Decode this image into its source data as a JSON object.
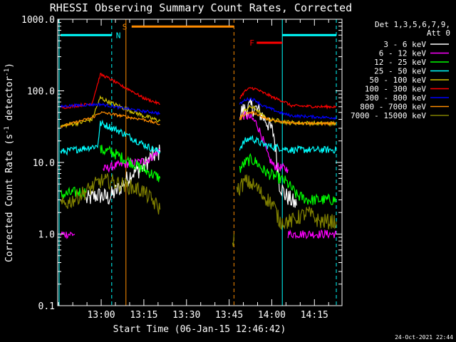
{
  "chart_data": {
    "type": "line",
    "title": "RHESSI Observing Summary Count Rates, Corrected",
    "xlabel": "Start Time (06-Jan-15 12:46:42)",
    "ylabel_prefix": "Corrected Count Rate (s",
    "ylabel_sup1": "-1",
    "ylabel_mid": " detector",
    "ylabel_sup2": "-1",
    "ylabel_suffix": ")",
    "y_scale": "log",
    "ylim": [
      0.1,
      1000
    ],
    "y_ticks": [
      {
        "value": 1000,
        "label": "1000.0"
      },
      {
        "value": 100,
        "label": "100.0"
      },
      {
        "value": 10,
        "label": "10.0"
      },
      {
        "value": 1,
        "label": "1.0"
      },
      {
        "value": 0.1,
        "label": "0.1"
      }
    ],
    "xlim_min": [
      -2,
      98
    ],
    "x_ticks": [
      {
        "value": 13.3,
        "label": "13:00"
      },
      {
        "value": 28.3,
        "label": "13:15"
      },
      {
        "value": 43.3,
        "label": "13:30"
      },
      {
        "value": 58.3,
        "label": "13:45"
      },
      {
        "value": 73.3,
        "label": "14:00"
      },
      {
        "value": 88.3,
        "label": "14:15"
      }
    ],
    "legend": {
      "header1": "Det 1,3,5,6,7,9,",
      "header2": "Att 0",
      "placement": "right",
      "entries": [
        {
          "label": "3 - 6 keV",
          "color": "#ffffff"
        },
        {
          "label": "6 - 12 keV",
          "color": "#ff00ff"
        },
        {
          "label": "12 - 25 keV",
          "color": "#00ff00"
        },
        {
          "label": "25 - 50 keV",
          "color": "#00ffff"
        },
        {
          "label": "50 - 100 keV",
          "color": "#d4c400"
        },
        {
          "label": "100 - 300 keV",
          "color": "#ff0000"
        },
        {
          "label": "300 - 800 keV",
          "color": "#0000ff"
        },
        {
          "label": "800 - 7000 keV",
          "color": "#ff8c00"
        },
        {
          "label": "7000 - 15000 keV",
          "color": "#808000"
        }
      ]
    },
    "flags": [
      {
        "label": "N",
        "color": "#00ffff",
        "x_start": -1,
        "x_end": 17,
        "y": 600
      },
      {
        "label": "S",
        "color": "#ff8c00",
        "x_start": 24,
        "x_end": 60,
        "y": 790
      },
      {
        "label": "F",
        "color": "#ff0000",
        "x_start": 68,
        "x_end": 77,
        "y": 470
      },
      {
        "label": "",
        "color": "#00ffff",
        "x_start": 77,
        "x_end": 96,
        "y": 600
      }
    ],
    "vlines": [
      {
        "x": -1.5,
        "color": "#00ffff",
        "style": "solid"
      },
      {
        "x": 17,
        "color": "#00ffff",
        "style": "dashed"
      },
      {
        "x": 22,
        "color": "#ff8c00",
        "style": "solid"
      },
      {
        "x": 60,
        "color": "#ff8c00",
        "style": "dashed"
      },
      {
        "x": 77,
        "color": "#00ffff",
        "style": "solid"
      },
      {
        "x": 96,
        "color": "#00ffff",
        "style": "dashed"
      }
    ],
    "series": [
      {
        "color": "#ffffff",
        "noise": 0.25,
        "segments": [
          [
            [
              8,
              3
            ],
            [
              12,
              3.5
            ],
            [
              16,
              3.2
            ],
            [
              20,
              4.5
            ],
            [
              24,
              7
            ],
            [
              28,
              8.5
            ],
            [
              31,
              12
            ],
            [
              34,
              14
            ]
          ],
          [
            [
              62,
              50
            ],
            [
              64,
              55
            ],
            [
              66,
              60
            ],
            [
              68,
              55
            ],
            [
              70,
              45
            ],
            [
              72,
              35
            ],
            [
              74,
              25
            ],
            [
              75,
              12
            ],
            [
              76,
              5
            ],
            [
              78,
              3.5
            ],
            [
              80,
              3
            ],
            [
              82,
              2.5
            ]
          ]
        ]
      },
      {
        "color": "#ff00ff",
        "noise": 0.12,
        "segments": [
          [
            [
              -1,
              1
            ],
            [
              4,
              1
            ]
          ],
          [
            [
              14,
              8
            ],
            [
              18,
              9
            ],
            [
              22,
              9.5
            ],
            [
              26,
              10
            ],
            [
              30,
              11
            ],
            [
              34,
              15
            ]
          ],
          [
            [
              62,
              45
            ],
            [
              64,
              45
            ],
            [
              66,
              42
            ],
            [
              68,
              35
            ],
            [
              70,
              22
            ],
            [
              72,
              12
            ],
            [
              74,
              9
            ],
            [
              79,
              8
            ]
          ],
          [
            [
              79,
              1
            ],
            [
              96,
              1
            ]
          ]
        ]
      },
      {
        "color": "#00ff00",
        "noise": 0.16,
        "segments": [
          [
            [
              -1,
              3.5
            ],
            [
              4,
              3.8
            ],
            [
              8,
              4
            ]
          ],
          [
            [
              13,
              15
            ],
            [
              17,
              14
            ],
            [
              20,
              12
            ],
            [
              24,
              10
            ],
            [
              28,
              8
            ],
            [
              31,
              7
            ],
            [
              34,
              6
            ]
          ],
          [
            [
              62,
              8
            ],
            [
              64,
              10
            ],
            [
              66,
              11
            ],
            [
              68,
              10
            ],
            [
              70,
              8
            ],
            [
              72,
              7
            ],
            [
              74,
              6.5
            ],
            [
              78,
              5.5
            ],
            [
              80,
              4.5
            ],
            [
              82,
              3.5
            ],
            [
              86,
              3
            ],
            [
              96,
              3
            ]
          ]
        ]
      },
      {
        "color": "#00ffff",
        "noise": 0.1,
        "segments": [
          [
            [
              -1,
              14
            ],
            [
              4,
              15
            ],
            [
              8,
              16
            ],
            [
              12,
              17
            ],
            [
              13,
              35
            ],
            [
              16,
              32
            ],
            [
              20,
              27
            ],
            [
              24,
              22
            ],
            [
              28,
              18
            ],
            [
              32,
              15
            ],
            [
              34,
              14
            ]
          ],
          [
            [
              62,
              16
            ],
            [
              64,
              20
            ],
            [
              66,
              22
            ],
            [
              68,
              20
            ],
            [
              70,
              18
            ],
            [
              72,
              17
            ],
            [
              76,
              16
            ],
            [
              80,
              15
            ],
            [
              90,
              15
            ],
            [
              96,
              15
            ]
          ]
        ]
      },
      {
        "color": "#d4c400",
        "noise": 0.06,
        "segments": [
          [
            [
              -1,
              32
            ],
            [
              2,
              34
            ],
            [
              6,
              36
            ],
            [
              10,
              40
            ],
            [
              13,
              80
            ],
            [
              16,
              70
            ],
            [
              20,
              60
            ],
            [
              24,
              52
            ],
            [
              28,
              45
            ],
            [
              32,
              40
            ],
            [
              34,
              38
            ]
          ],
          [
            [
              62,
              40
            ],
            [
              64,
              55
            ],
            [
              66,
              60
            ],
            [
              68,
              55
            ],
            [
              70,
              45
            ],
            [
              72,
              40
            ],
            [
              76,
              38
            ],
            [
              80,
              36
            ],
            [
              90,
              35
            ],
            [
              96,
              35
            ]
          ]
        ]
      },
      {
        "color": "#ff0000",
        "noise": 0.04,
        "segments": [
          [
            [
              -1,
              58
            ],
            [
              2,
              60
            ],
            [
              6,
              63
            ],
            [
              10,
              66
            ],
            [
              13,
              170
            ],
            [
              16,
              150
            ],
            [
              20,
              120
            ],
            [
              24,
              100
            ],
            [
              28,
              80
            ],
            [
              32,
              70
            ],
            [
              34,
              65
            ]
          ],
          [
            [
              62,
              80
            ],
            [
              64,
              100
            ],
            [
              66,
              110
            ],
            [
              68,
              105
            ],
            [
              70,
              95
            ],
            [
              72,
              88
            ],
            [
              74,
              80
            ],
            [
              76,
              75
            ],
            [
              78,
              70
            ],
            [
              80,
              62
            ],
            [
              90,
              60
            ],
            [
              96,
              60
            ]
          ]
        ]
      },
      {
        "color": "#0000ff",
        "noise": 0.04,
        "segments": [
          [
            [
              -1,
              60
            ],
            [
              2,
              62
            ],
            [
              6,
              63
            ],
            [
              10,
              64
            ],
            [
              13,
              65
            ],
            [
              16,
              62
            ],
            [
              20,
              58
            ],
            [
              24,
              55
            ],
            [
              28,
              52
            ],
            [
              32,
              50
            ],
            [
              34,
              48
            ]
          ],
          [
            [
              62,
              65
            ],
            [
              64,
              75
            ],
            [
              66,
              78
            ],
            [
              68,
              72
            ],
            [
              70,
              62
            ],
            [
              72,
              58
            ],
            [
              74,
              54
            ],
            [
              76,
              50
            ],
            [
              80,
              45
            ],
            [
              90,
              43
            ],
            [
              96,
              42
            ]
          ]
        ]
      },
      {
        "color": "#ff8c00",
        "noise": 0.04,
        "segments": [
          [
            [
              -1,
              32
            ],
            [
              2,
              34
            ],
            [
              6,
              38
            ],
            [
              10,
              42
            ],
            [
              13,
              50
            ],
            [
              16,
              48
            ],
            [
              20,
              45
            ],
            [
              24,
              42
            ],
            [
              28,
              40
            ],
            [
              32,
              36
            ],
            [
              34,
              34
            ]
          ],
          [
            [
              62,
              40
            ],
            [
              64,
              48
            ],
            [
              66,
              50
            ],
            [
              68,
              48
            ],
            [
              70,
              43
            ],
            [
              72,
              40
            ],
            [
              74,
              38
            ],
            [
              76,
              37
            ],
            [
              80,
              36
            ],
            [
              90,
              35
            ],
            [
              96,
              35
            ]
          ]
        ]
      },
      {
        "color": "#808000",
        "noise": 0.22,
        "segments": [
          [
            [
              -1,
              2.5
            ],
            [
              2,
              2.8
            ],
            [
              6,
              3.5
            ],
            [
              10,
              4.5
            ],
            [
              13,
              5.5
            ],
            [
              16,
              5.5
            ],
            [
              20,
              5
            ],
            [
              24,
              4.5
            ],
            [
              28,
              4
            ],
            [
              31,
              3
            ],
            [
              34,
              2.2
            ]
          ],
          [
            [
              59.5,
              0.7
            ],
            [
              60,
              1
            ]
          ],
          [
            [
              61,
              4
            ],
            [
              64,
              5.5
            ],
            [
              66,
              5
            ],
            [
              68,
              4.5
            ],
            [
              70,
              3.5
            ],
            [
              72,
              3
            ],
            [
              74,
              2.5
            ],
            [
              76,
              1.5
            ],
            [
              80,
              1.5
            ],
            [
              86,
              2
            ],
            [
              90,
              1.5
            ],
            [
              96,
              1.5
            ]
          ]
        ]
      }
    ]
  },
  "footer": {
    "timestamp": "24-Oct-2021 22:44"
  }
}
